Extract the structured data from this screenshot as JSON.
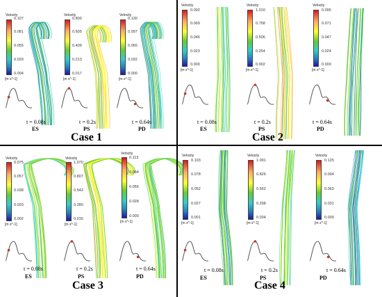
{
  "cases": [
    {
      "title": "Case 1",
      "panels": [
        {
          "label": "Velocity",
          "ticks": [
            "0.107",
            "0.081",
            "0.055",
            "0.029",
            "0.004"
          ],
          "unit": "[m s^-1]",
          "time": "t = 0.08s",
          "phase": "ES"
        },
        {
          "label": "Velocity",
          "ticks": [
            "0.800",
            "0.605",
            "0.409",
            "0.213",
            "0.017"
          ],
          "unit": "[m s^-1]",
          "time": "t = 0.2s",
          "phase": "PS"
        },
        {
          "label": "Velocity",
          "ticks": [
            "0.130",
            "0.097",
            "0.065",
            "0.032",
            "0.000"
          ],
          "unit": "[m s^-1]",
          "time": "t = 0.64s",
          "phase": "PD"
        }
      ]
    },
    {
      "title": "Case 2",
      "panels": [
        {
          "label": "Velocity",
          "ticks": [
            "0.092",
            "0.069",
            "0.046",
            "0.023",
            "0.000"
          ],
          "unit": "[m s^-1]",
          "time": "t = 0.08s",
          "phase": "ES"
        },
        {
          "label": "Velocity",
          "ticks": [
            "1.010",
            "0.758",
            "0.506",
            "0.254",
            "0.002"
          ],
          "unit": "[m s^-1]",
          "time": "t = 0.2s",
          "phase": "PS"
        },
        {
          "label": "Velocity",
          "ticks": [
            "0.095",
            "0.071",
            "0.047",
            "0.024",
            "0.000"
          ],
          "unit": "[m s^-1]",
          "time": "t = 0.64s",
          "phase": "PD"
        }
      ]
    },
    {
      "title": "Case 3",
      "panels": [
        {
          "label": "Velocity",
          "ticks": [
            "0.075",
            "0.057",
            "0.038",
            "0.020",
            "0.002"
          ],
          "unit": "[m s^-1]",
          "time": "t = 0.08s",
          "phase": "ES"
        },
        {
          "label": "Velocity",
          "ticks": [
            "1.070",
            "0.807",
            "0.543",
            "0.280",
            "0.016"
          ],
          "unit": "[m s^-1]",
          "time": "t = 0.2s",
          "phase": "PS"
        },
        {
          "label": "Velocity",
          "ticks": [
            "0.113",
            "0.084",
            "0.056",
            "0.028",
            "0.000"
          ],
          "unit": "[m s^-1]",
          "time": "t = 0.64s",
          "phase": "PD"
        }
      ]
    },
    {
      "title": "Case 4",
      "panels": [
        {
          "label": "Velocity",
          "ticks": [
            "0.103",
            "0.078",
            "0.052",
            "0.027",
            "0.001"
          ],
          "unit": "[m s^-1]",
          "time": "t = 0.08s",
          "phase": "ES"
        },
        {
          "label": "Velocity",
          "ticks": [
            "1.091",
            "0.826",
            "0.562",
            "0.298",
            "0.034"
          ],
          "unit": "[m s^-1]",
          "time": "t = 0.2s",
          "phase": "PS"
        },
        {
          "label": "Velocity",
          "ticks": [
            "0.125",
            "0.094",
            "0.063",
            "0.031",
            "0.000"
          ],
          "unit": "[m s^-1]",
          "time": "t = 0.64s",
          "phase": "PD"
        }
      ]
    }
  ],
  "colors": {
    "waveform": "#555555",
    "marker": "#c0392b",
    "streamline_palette": [
      "#1a1aa6",
      "#2b83ba",
      "#33cccc",
      "#66cc33",
      "#ffff33",
      "#fdae61",
      "#d7191c"
    ]
  }
}
